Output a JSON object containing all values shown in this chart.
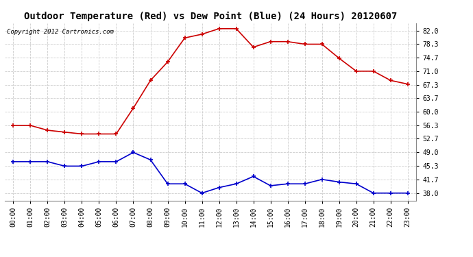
{
  "title": "Outdoor Temperature (Red) vs Dew Point (Blue) (24 Hours) 20120607",
  "copyright_text": "Copyright 2012 Cartronics.com",
  "x_labels": [
    "00:00",
    "01:00",
    "02:00",
    "03:00",
    "04:00",
    "05:00",
    "06:00",
    "07:00",
    "08:00",
    "09:00",
    "10:00",
    "11:00",
    "12:00",
    "13:00",
    "14:00",
    "15:00",
    "16:00",
    "17:00",
    "18:00",
    "19:00",
    "20:00",
    "21:00",
    "22:00",
    "23:00"
  ],
  "temp_red": [
    56.3,
    56.3,
    55.0,
    54.5,
    54.0,
    54.0,
    54.0,
    61.0,
    68.5,
    73.5,
    80.0,
    81.0,
    82.5,
    82.5,
    77.5,
    79.0,
    79.0,
    78.3,
    78.3,
    74.5,
    71.0,
    71.0,
    68.5,
    67.5
  ],
  "dew_blue": [
    46.5,
    46.5,
    46.5,
    45.3,
    45.3,
    46.5,
    46.5,
    49.0,
    47.0,
    40.5,
    40.5,
    38.0,
    39.5,
    40.5,
    42.5,
    40.0,
    40.5,
    40.5,
    41.7,
    41.0,
    40.5,
    38.0,
    38.0,
    38.0
  ],
  "ylim": [
    36.0,
    84.0
  ],
  "yticks": [
    38.0,
    41.7,
    45.3,
    49.0,
    52.7,
    56.3,
    60.0,
    63.7,
    67.3,
    71.0,
    74.7,
    78.3,
    82.0
  ],
  "bg_color": "#ffffff",
  "plot_bg_color": "#ffffff",
  "red_color": "#cc0000",
  "blue_color": "#0000cc",
  "grid_color": "#cccccc",
  "title_fontsize": 10,
  "copyright_fontsize": 6.5,
  "tick_fontsize": 7
}
